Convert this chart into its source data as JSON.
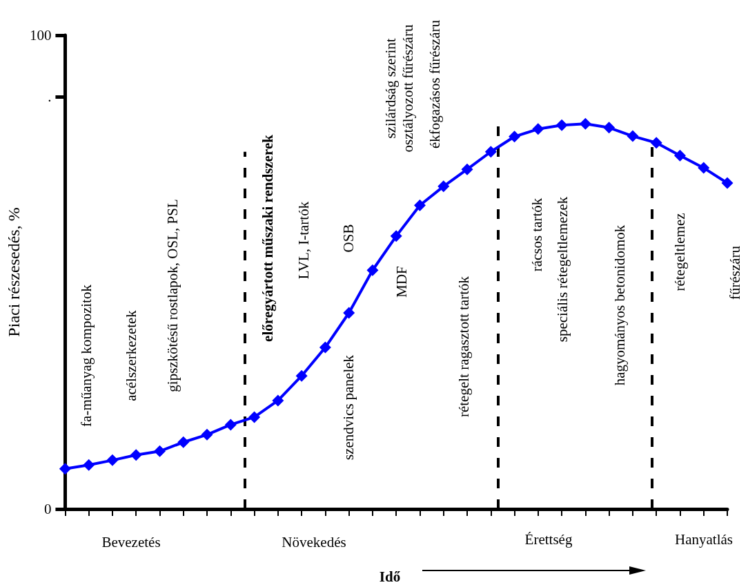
{
  "chart_data": {
    "type": "line",
    "ylabel": "Piaci részesedés, %",
    "xlabel": "Idő",
    "categories": [
      null,
      null,
      null,
      null,
      null,
      null,
      null,
      null,
      null,
      null,
      null,
      null,
      null,
      null,
      null,
      null,
      null,
      null,
      null,
      null,
      null,
      null,
      null,
      null,
      null,
      null,
      null,
      null,
      null
    ],
    "ylim": [
      0,
      100
    ],
    "yticks": [
      0,
      {
        "value": 87,
        "label": "."
      },
      100
    ],
    "series": [
      {
        "color": "#0000ff",
        "values": [
          8.5,
          9.3,
          10.3,
          11.4,
          12.2,
          14.1,
          15.7,
          17.8,
          19.4,
          22.9,
          28.1,
          34.1,
          41.4,
          50.4,
          57.6,
          64.1,
          68.1,
          71.7,
          75.4,
          78.6,
          80.2,
          81.0,
          81.3,
          80.5,
          78.7,
          77.3,
          74.6,
          72.0,
          68.8
        ]
      }
    ],
    "marker": "diamond",
    "line_style": "solid",
    "grid": false,
    "annotations": [
      "fa-műanyag kompozitok",
      "acélszerkezetek",
      "gipszkötésű rostlapok, OSL, PSL",
      "előregyártott műszaki rendszerek",
      "LVL, I-tartók",
      "OSB",
      "szendvics panelek",
      "MDF",
      "szilárdság szerint\nosztályozott fűrészáru",
      "ékfogazásos fűrészáru",
      "rétegelt ragasztott tartók",
      "rácsos tartók",
      "speciális rétegeltlemezek",
      "hagyományos betonidomok",
      "rétegeltlemez",
      "fűrészáru",
      "Bevezetés",
      "Növekedés",
      "Érettség",
      "Hanyatlás"
    ]
  }
}
